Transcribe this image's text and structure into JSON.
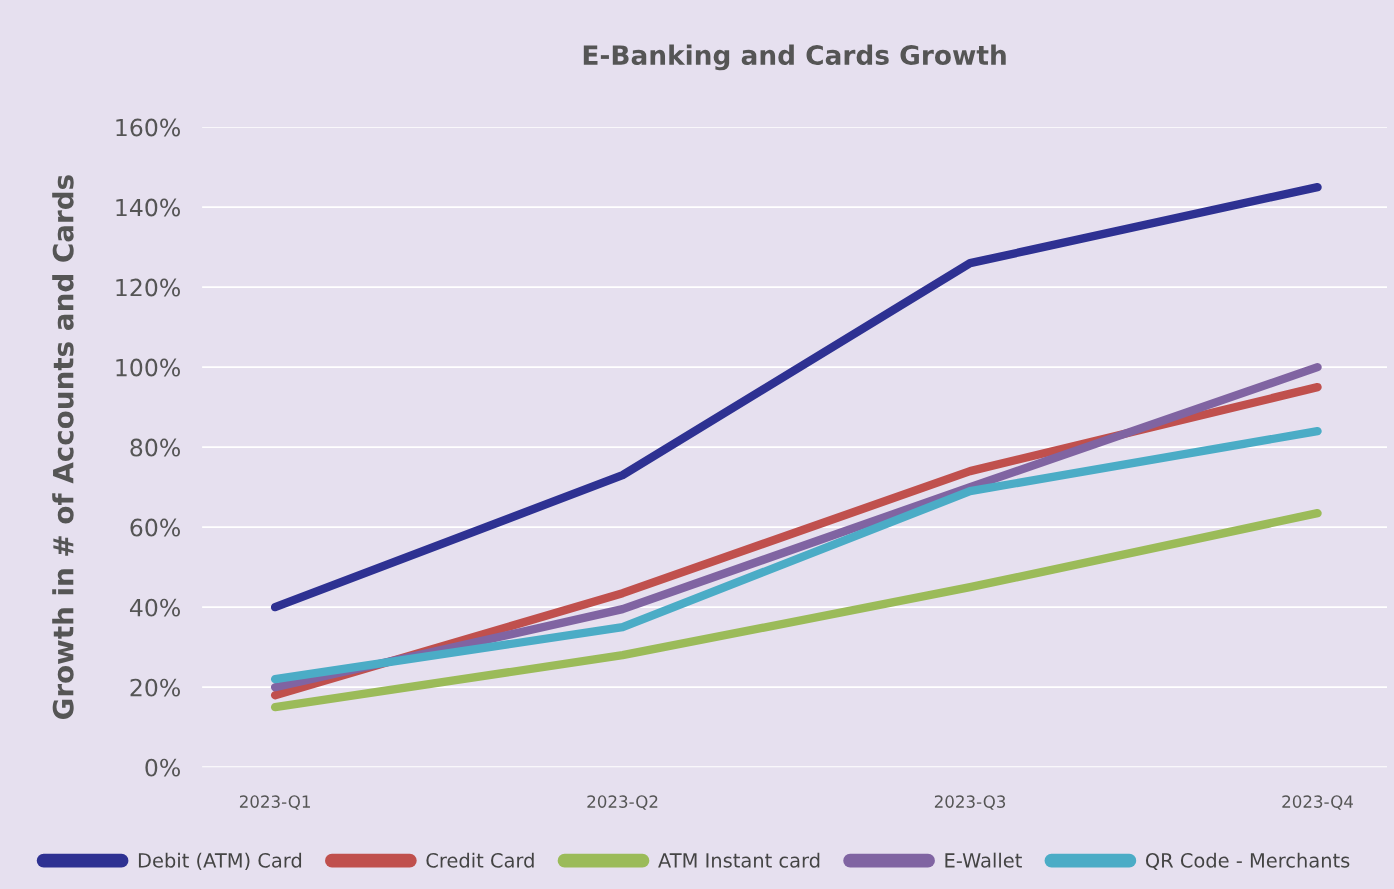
{
  "chart_data": {
    "type": "line",
    "title": "E-Banking and Cards Growth",
    "ylabel": "Growth in # of Accounts and Cards",
    "categories": [
      "2023-Q1",
      "2023-Q2",
      "2023-Q3",
      "2023-Q4"
    ],
    "series": [
      {
        "name": "Debit (ATM) Card",
        "color": "#2e3192",
        "values": [
          40,
          73,
          126,
          145
        ]
      },
      {
        "name": "Credit Card",
        "color": "#c0504d",
        "values": [
          18,
          43.5,
          74,
          95
        ]
      },
      {
        "name": "ATM Instant card",
        "color": "#9bbb59",
        "values": [
          15,
          28,
          45,
          63.5
        ]
      },
      {
        "name": "E-Wallet",
        "color": "#8064a2",
        "values": [
          20,
          39.5,
          70,
          100
        ]
      },
      {
        "name": "QR Code - Merchants",
        "color": "#4bacc6",
        "values": [
          22,
          35,
          69,
          84
        ]
      }
    ],
    "ylim": [
      0,
      160
    ],
    "yticks": [
      {
        "value": 0,
        "label": "0%"
      },
      {
        "value": 20,
        "label": "20%"
      },
      {
        "value": 40,
        "label": "40%"
      },
      {
        "value": 60,
        "label": "60%"
      },
      {
        "value": 80,
        "label": "80%"
      },
      {
        "value": 100,
        "label": "100%"
      },
      {
        "value": 120,
        "label": "120%"
      },
      {
        "value": 140,
        "label": "140%"
      },
      {
        "value": 160,
        "label": "160%"
      }
    ],
    "grid": "y",
    "legend": "bottom",
    "marker": "none",
    "line_style": "solid"
  }
}
